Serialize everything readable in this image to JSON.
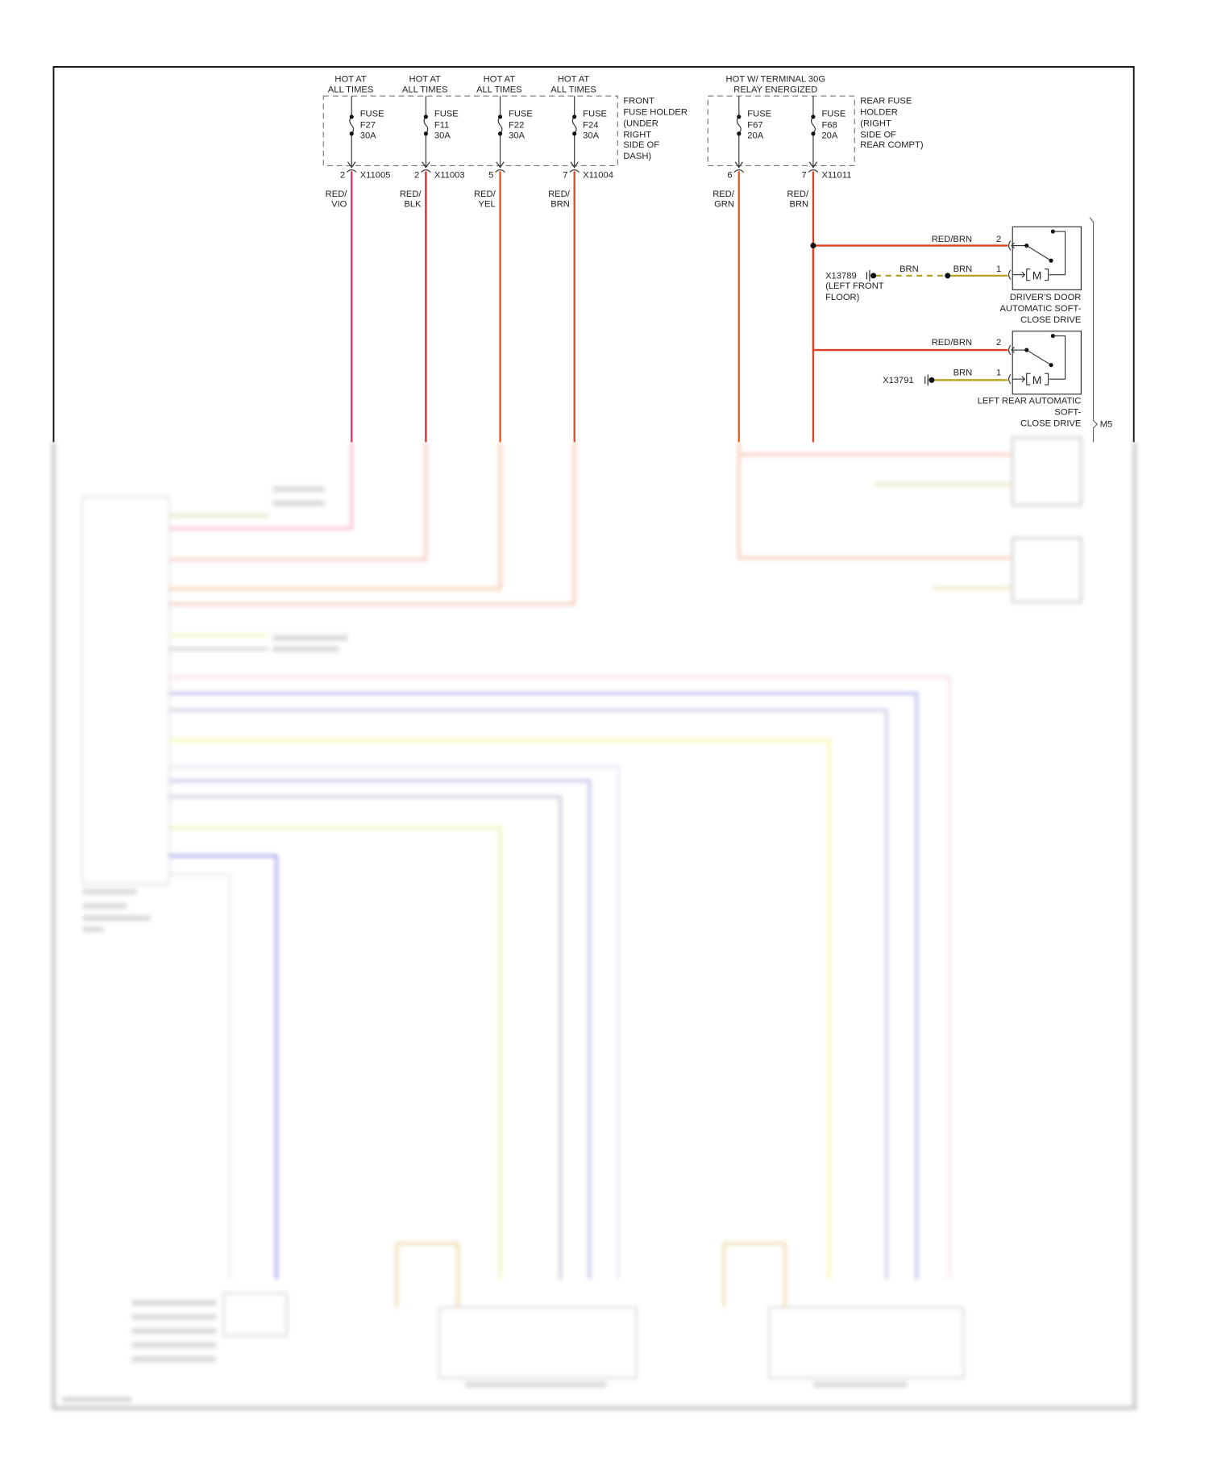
{
  "front_fuses": [
    {
      "hot": [
        "HOT AT",
        "ALL TIMES"
      ],
      "name": "FUSE",
      "id": "F27",
      "rating": "30A",
      "pin": "2",
      "connector": "X11005",
      "wire": [
        "RED/",
        "VIO"
      ],
      "color": "#e0306a"
    },
    {
      "hot": [
        "HOT AT",
        "ALL TIMES"
      ],
      "name": "FUSE",
      "id": "F11",
      "rating": "30A",
      "pin": "2",
      "connector": "X11003",
      "wire": [
        "RED/",
        "BLK"
      ],
      "color": "#c8302a"
    },
    {
      "hot": [
        "HOT AT",
        "ALL TIMES"
      ],
      "name": "FUSE",
      "id": "F22",
      "rating": "30A",
      "pin": "5",
      "connector": "",
      "wire": [
        "RED/",
        "YEL"
      ],
      "color": "#e8501a"
    },
    {
      "hot": [
        "HOT AT",
        "ALL TIMES"
      ],
      "name": "FUSE",
      "id": "F24",
      "rating": "30A",
      "pin": "7",
      "connector": "X11004",
      "wire": [
        "RED/",
        "BRN"
      ],
      "color": "#d84a28"
    }
  ],
  "front_holder": [
    "FRONT",
    "FUSE HOLDER",
    "(UNDER",
    "RIGHT",
    "SIDE OF",
    "DASH)"
  ],
  "rear_hot": [
    "HOT W/ TERMINAL 30G",
    "RELAY ENERGIZED"
  ],
  "rear_fuses": [
    {
      "name": "FUSE",
      "id": "F67",
      "rating": "20A",
      "pin": "6",
      "connector": "",
      "wire": [
        "RED/",
        "GRN"
      ],
      "color": "#d86020"
    },
    {
      "name": "FUSE",
      "id": "F68",
      "rating": "20A",
      "pin": "7",
      "connector": "X11011",
      "wire": [
        "RED/",
        "BRN"
      ],
      "color": "#e04020"
    }
  ],
  "rear_holder": [
    "REAR FUSE",
    "HOLDER",
    "(RIGHT",
    "SIDE OF",
    "REAR COMPT)"
  ],
  "drives": [
    {
      "feed_wire": "RED/BRN",
      "feed_pin": "2",
      "ground_wire": "BRN",
      "ground_wire2": "BRN",
      "ground_pin": "1",
      "ground": "X13789",
      "ground_loc": [
        "(LEFT FRONT",
        "FLOOR)"
      ],
      "motor": "M",
      "label": [
        "DRIVER'S DOOR",
        "AUTOMATIC SOFT-",
        "CLOSE DRIVE"
      ]
    },
    {
      "feed_wire": "RED/BRN",
      "feed_pin": "2",
      "ground_wire": "BRN",
      "ground_pin": "1",
      "ground": "X13791",
      "motor": "M",
      "label": [
        "LEFT REAR AUTOMATIC",
        "SOFT-",
        "CLOSE DRIVE"
      ]
    }
  ],
  "group_label": "M5",
  "colors": {
    "brn_wire": "#b8a020",
    "frame": "#111111"
  }
}
